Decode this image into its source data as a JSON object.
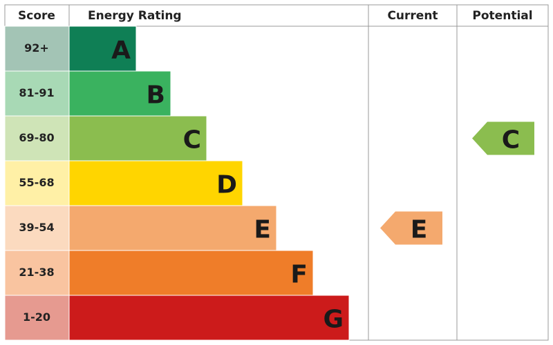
{
  "header": {
    "score": "Score",
    "energy_rating": "Energy Rating",
    "current": "Current",
    "potential": "Potential"
  },
  "bands": [
    {
      "score": "92+",
      "letter": "A",
      "color": "#0f7f55",
      "score_color": "#a3c4b5"
    },
    {
      "score": "81-91",
      "letter": "B",
      "color": "#3ab25f",
      "score_color": "#a8d9b5"
    },
    {
      "score": "69-80",
      "letter": "C",
      "color": "#8bbd4f",
      "score_color": "#cfe4b7"
    },
    {
      "score": "55-68",
      "letter": "D",
      "color": "#ffd500",
      "score_color": "#fff0a6"
    },
    {
      "score": "39-54",
      "letter": "E",
      "color": "#f4a96e",
      "score_color": "#fbdabf"
    },
    {
      "score": "21-38",
      "letter": "F",
      "color": "#ef7d29",
      "score_color": "#f9c4a0"
    },
    {
      "score": "1-20",
      "letter": "G",
      "color": "#cc1b1b",
      "score_color": "#e69a90"
    }
  ],
  "current": {
    "letter": "E"
  },
  "potential": {
    "letter": "C"
  }
}
